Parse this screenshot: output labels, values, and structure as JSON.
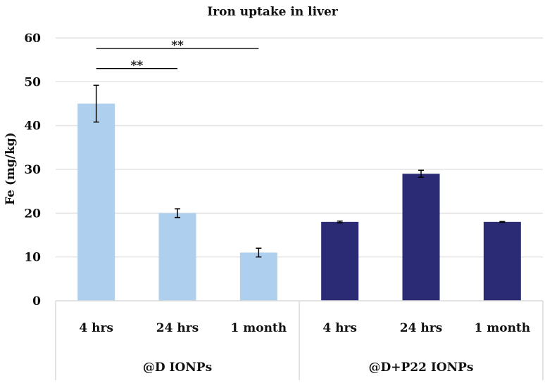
{
  "chart_data": {
    "type": "bar",
    "title": "Iron uptake in liver",
    "xlabel": "",
    "ylabel": "Fe (mg/kg)",
    "ylim": [
      0,
      60
    ],
    "yticks": [
      "0",
      "10",
      "20",
      "30",
      "40",
      "50",
      "60"
    ],
    "grid": true,
    "categories": [
      "4 hrs",
      "24 hrs",
      "1 month",
      "4 hrs",
      "24 hrs",
      "1 month"
    ],
    "groups": [
      {
        "label": "@D IONPs",
        "color": "#aed0ee",
        "indices": [
          0,
          1,
          2
        ]
      },
      {
        "label": "@D+P22 IONPs",
        "color": "#2a2b74",
        "indices": [
          3,
          4,
          5
        ]
      }
    ],
    "values": [
      45,
      20,
      11,
      18,
      29,
      18
    ],
    "errors": [
      4.2,
      1.0,
      1.0,
      0.2,
      0.8,
      0.1
    ],
    "significance": [
      {
        "from": 0,
        "to": 1,
        "y": 53,
        "label": "**"
      },
      {
        "from": 0,
        "to": 2,
        "y": 57.6,
        "label": "**"
      }
    ]
  }
}
